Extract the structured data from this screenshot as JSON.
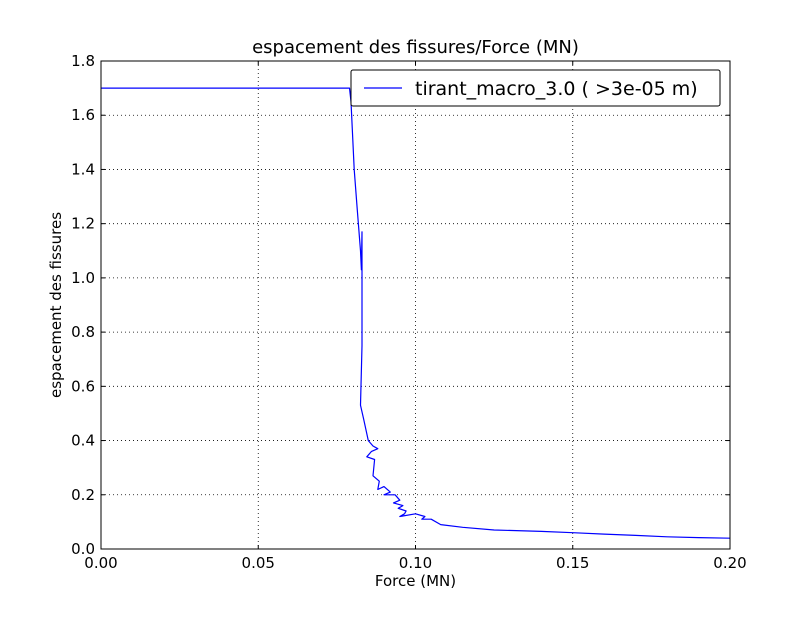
{
  "chart_data": {
    "type": "line",
    "title": "espacement des fissures/Force (MN)",
    "xlabel": "Force (MN)",
    "ylabel": "espacement des fissures",
    "xlim": [
      0.0,
      0.2
    ],
    "ylim": [
      0.0,
      1.8
    ],
    "xticks": [
      "0.00",
      "0.05",
      "0.10",
      "0.15",
      "0.20"
    ],
    "yticks": [
      "0.0",
      "0.2",
      "0.4",
      "0.6",
      "0.8",
      "1.0",
      "1.2",
      "1.4",
      "1.6",
      "1.8"
    ],
    "grid": true,
    "legend_position": "top-right",
    "series": [
      {
        "name": "tirant_macro_3.0 ( >3e-05 m)",
        "color": "#0000ff",
        "points": [
          [
            0.0,
            1.7
          ],
          [
            0.05,
            1.7
          ],
          [
            0.079,
            1.7
          ],
          [
            0.0795,
            1.65
          ],
          [
            0.0805,
            1.4
          ],
          [
            0.0815,
            1.25
          ],
          [
            0.0825,
            1.1
          ],
          [
            0.0828,
            1.03
          ],
          [
            0.083,
            1.17
          ],
          [
            0.083,
            0.75
          ],
          [
            0.0825,
            0.53
          ],
          [
            0.0835,
            0.48
          ],
          [
            0.085,
            0.4
          ],
          [
            0.0865,
            0.38
          ],
          [
            0.088,
            0.37
          ],
          [
            0.086,
            0.36
          ],
          [
            0.0845,
            0.34
          ],
          [
            0.087,
            0.33
          ],
          [
            0.0865,
            0.27
          ],
          [
            0.0885,
            0.25
          ],
          [
            0.088,
            0.22
          ],
          [
            0.09,
            0.23
          ],
          [
            0.092,
            0.21
          ],
          [
            0.09,
            0.2
          ],
          [
            0.0935,
            0.2
          ],
          [
            0.095,
            0.18
          ],
          [
            0.093,
            0.17
          ],
          [
            0.096,
            0.16
          ],
          [
            0.0945,
            0.15
          ],
          [
            0.097,
            0.14
          ],
          [
            0.0965,
            0.13
          ],
          [
            0.095,
            0.12
          ],
          [
            0.1,
            0.13
          ],
          [
            0.103,
            0.12
          ],
          [
            0.102,
            0.11
          ],
          [
            0.105,
            0.11
          ],
          [
            0.108,
            0.09
          ],
          [
            0.115,
            0.08
          ],
          [
            0.125,
            0.07
          ],
          [
            0.14,
            0.065
          ],
          [
            0.15,
            0.06
          ],
          [
            0.16,
            0.055
          ],
          [
            0.17,
            0.05
          ],
          [
            0.18,
            0.045
          ],
          [
            0.19,
            0.042
          ],
          [
            0.2,
            0.04
          ]
        ]
      }
    ]
  }
}
